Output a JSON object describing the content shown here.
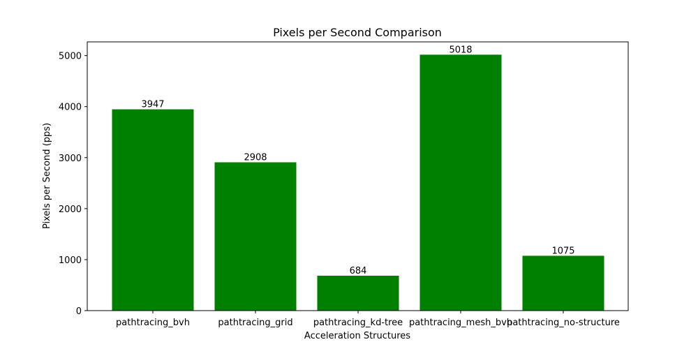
{
  "chart_data": {
    "type": "bar",
    "title": "Pixels per Second Comparison",
    "xlabel": "Acceleration Structures",
    "ylabel": "Pixels per Second (pps)",
    "categories": [
      "pathtracing_bvh",
      "pathtracing_grid",
      "pathtracing_kd-tree",
      "pathtracing_mesh_bvh",
      "pathtracing_no-structure"
    ],
    "values": [
      3947,
      2908,
      684,
      5018,
      1075
    ],
    "data_labels": [
      "3947",
      "2908",
      "684",
      "5018",
      "1075"
    ],
    "ylim": [
      0,
      5269
    ],
    "yticks": [
      0,
      1000,
      2000,
      3000,
      4000,
      5000
    ],
    "ytick_labels": [
      "0",
      "1000",
      "2000",
      "3000",
      "4000",
      "5000"
    ],
    "bar_color": "#008000",
    "grid": false,
    "legend": "none"
  }
}
